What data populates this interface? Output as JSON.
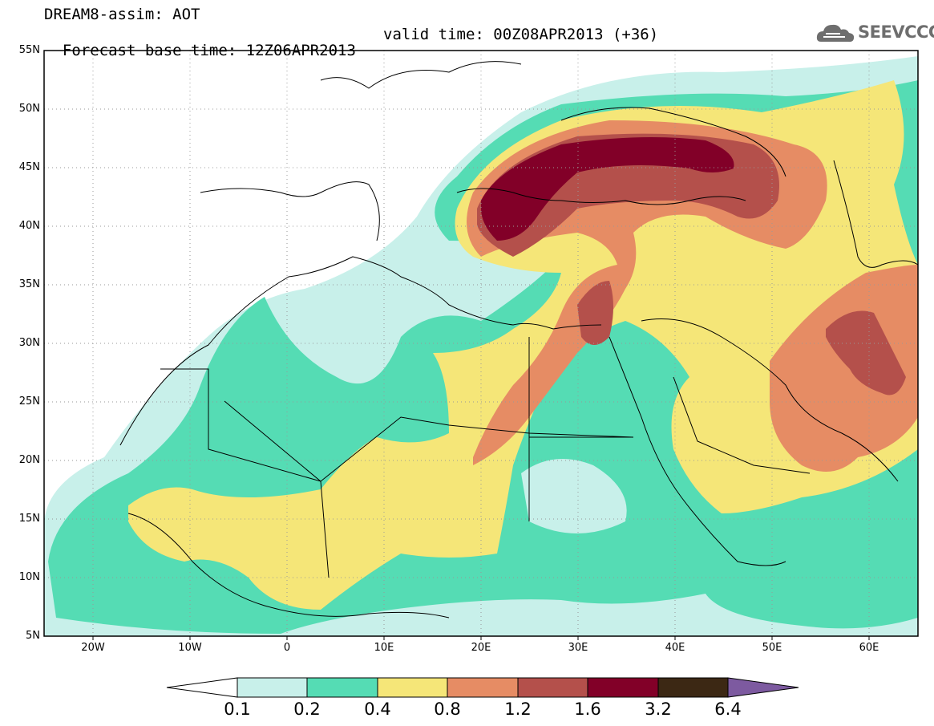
{
  "header": {
    "title": "DREAM8-assim: AOT",
    "base_time": "Forecast base time: 12Z06APR2013",
    "valid_time": "valid time: 00Z08APR2013 (+36)"
  },
  "logo": {
    "text": "SEEVCCC",
    "icon": "cloud-icon"
  },
  "map": {
    "lat_labels": [
      "55N",
      "50N",
      "45N",
      "40N",
      "35N",
      "30N",
      "25N",
      "20N",
      "15N",
      "10N",
      "5N"
    ],
    "lon_labels": [
      "20W",
      "10W",
      "0",
      "10E",
      "20E",
      "30E",
      "40E",
      "50E",
      "60E"
    ],
    "lat_range": [
      5,
      55
    ],
    "lon_range": [
      -25,
      65
    ],
    "grid": "dotted"
  },
  "colorbar": {
    "labels": [
      "0.1",
      "0.2",
      "0.4",
      "0.8",
      "1.2",
      "1.6",
      "3.2",
      "6.4"
    ],
    "colors": [
      "#ffffff",
      "#c8f0ea",
      "#55dcb4",
      "#f5e678",
      "#e68c64",
      "#b4504b",
      "#820028",
      "#3c2814",
      "#7d5aa0"
    ]
  }
}
